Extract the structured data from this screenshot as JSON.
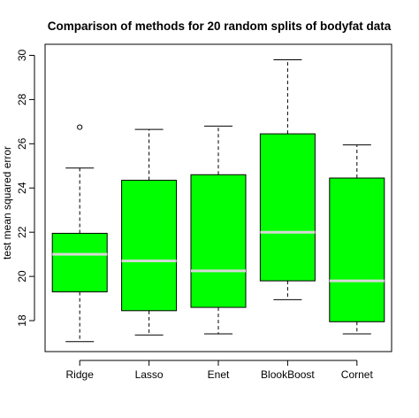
{
  "chart_data": {
    "type": "box",
    "title": "Comparison of methods for 20 random splits of bodyfat data",
    "xlabel": "",
    "ylabel": "test mean squared error",
    "ylim": [
      16.6,
      30.5
    ],
    "yticks": [
      18,
      20,
      22,
      24,
      26,
      28,
      30
    ],
    "categories": [
      "Ridge",
      "Lasso",
      "Enet",
      "BlookBoost",
      "Cornet"
    ],
    "box_color": "#00ff00",
    "median_color": "#d8d8d8",
    "boxes": [
      {
        "name": "Ridge",
        "whisker_low": 17.05,
        "q1": 19.3,
        "median": 21.0,
        "q3": 21.95,
        "whisker_high": 24.9,
        "outliers": [
          26.75
        ]
      },
      {
        "name": "Lasso",
        "whisker_low": 17.35,
        "q1": 18.45,
        "median": 20.7,
        "q3": 24.35,
        "whisker_high": 26.65,
        "outliers": []
      },
      {
        "name": "Enet",
        "whisker_low": 17.4,
        "q1": 18.6,
        "median": 20.25,
        "q3": 24.6,
        "whisker_high": 26.8,
        "outliers": []
      },
      {
        "name": "BlookBoost",
        "whisker_low": 18.95,
        "q1": 19.8,
        "median": 22.0,
        "q3": 26.45,
        "whisker_high": 29.8,
        "outliers": []
      },
      {
        "name": "Cornet",
        "whisker_low": 17.4,
        "q1": 17.95,
        "median": 19.8,
        "q3": 24.45,
        "whisker_high": 25.95,
        "outliers": []
      }
    ]
  }
}
